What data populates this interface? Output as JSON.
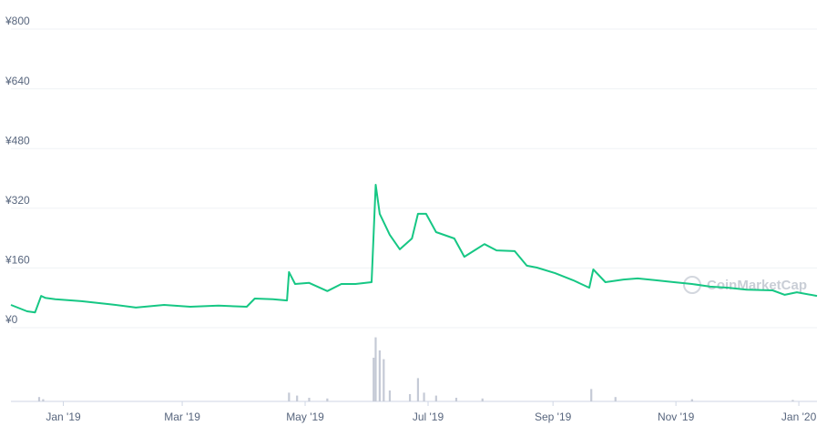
{
  "chart_data": {
    "type": "line",
    "watermark": "CoinMarketCap",
    "color": "#16c784",
    "x": [
      -26,
      -18,
      -14,
      -11,
      -9,
      -4,
      9,
      23,
      36,
      50,
      63,
      77,
      91,
      95,
      104,
      111,
      112,
      115,
      122,
      131,
      138,
      145,
      153,
      155,
      157,
      162,
      167,
      173,
      176,
      180,
      185,
      194,
      199,
      204,
      209,
      215,
      224,
      230,
      235,
      244,
      253,
      261,
      263,
      269,
      278,
      285,
      294,
      303,
      312,
      321,
      330,
      339,
      352,
      358,
      364,
      374
    ],
    "values": [
      61,
      44,
      41,
      85,
      80,
      76,
      71,
      63,
      54,
      61,
      56,
      59,
      56,
      78,
      76,
      73,
      149,
      117,
      120,
      98,
      117,
      117,
      122,
      383,
      305,
      249,
      210,
      239,
      305,
      305,
      256,
      239,
      190,
      207,
      224,
      207,
      205,
      166,
      161,
      146,
      127,
      107,
      156,
      122,
      129,
      132,
      127,
      122,
      117,
      110,
      107,
      102,
      100,
      88,
      95,
      85
    ],
    "volume": {
      "color": "#c5cad6",
      "x": [
        -12,
        -10,
        112,
        116,
        122,
        131,
        154,
        155,
        157,
        159,
        162,
        172,
        176,
        179,
        185,
        195,
        208,
        262,
        274,
        312,
        362
      ],
      "values": [
        6,
        3,
        12,
        8,
        5,
        4,
        60,
        88,
        70,
        58,
        15,
        10,
        32,
        12,
        8,
        5,
        4,
        17,
        6,
        3,
        2
      ]
    },
    "xlim": [
      -26,
      374
    ],
    "xticks": [
      {
        "value": 0,
        "label": "Jan '19"
      },
      {
        "value": 59,
        "label": "Mar '19"
      },
      {
        "value": 120,
        "label": "May '19"
      },
      {
        "value": 181,
        "label": "Jul '19"
      },
      {
        "value": 243,
        "label": "Sep '19"
      },
      {
        "value": 304,
        "label": "Nov '19"
      },
      {
        "value": 365,
        "label": "Jan '20"
      }
    ],
    "ylim": [
      0,
      800
    ],
    "yticks": [
      {
        "value": 0,
        "label": "¥0"
      },
      {
        "value": 160,
        "label": "¥160"
      },
      {
        "value": 320,
        "label": "¥320"
      },
      {
        "value": 480,
        "label": "¥480"
      },
      {
        "value": 640,
        "label": "¥640"
      },
      {
        "value": 800,
        "label": "¥800"
      }
    ],
    "y2lim": [
      0,
      100
    ],
    "grid": true
  }
}
